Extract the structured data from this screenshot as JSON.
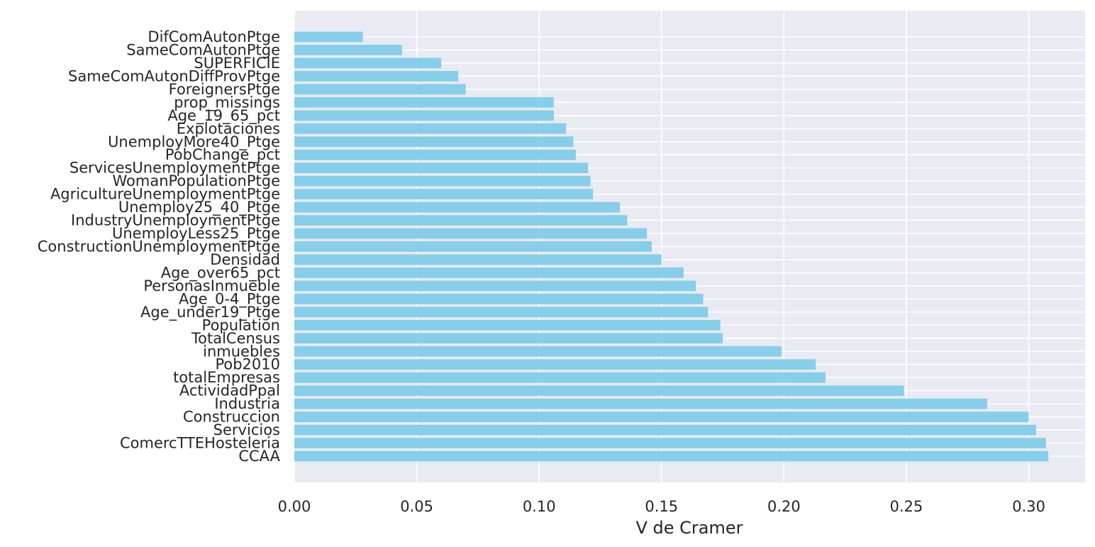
{
  "chart_data": {
    "type": "bar",
    "orientation": "horizontal",
    "title": "",
    "xlabel": "V de Cramer",
    "ylabel": "",
    "xlim": [
      0,
      0.323
    ],
    "xticks": [
      0.0,
      0.05,
      0.1,
      0.15,
      0.2,
      0.25,
      0.3
    ],
    "xtick_labels": [
      "0.00",
      "0.05",
      "0.10",
      "0.15",
      "0.20",
      "0.25",
      "0.30"
    ],
    "grid": true,
    "legend": "none",
    "colors": {
      "bar": "#87CEEB",
      "background": "#EAEAF2",
      "grid": "#FFFFFF",
      "text": "#262626"
    },
    "categories": [
      "DifComAutonPtge",
      "SameComAutonPtge",
      "SUPERFICIE",
      "SameComAutonDiffProvPtge",
      "ForeignersPtge",
      "prop_missings",
      "Age_19_65_pct",
      "Explotaciones",
      "UnemployMore40_Ptge",
      "PobChange_pct",
      "ServicesUnemploymentPtge",
      "WomanPopulationPtge",
      "AgricultureUnemploymentPtge",
      "Unemploy25_40_Ptge",
      "IndustryUnemploymentPtge",
      "UnemployLess25_Ptge",
      "ConstructionUnemploymentPtge",
      "Densidad",
      "Age_over65_pct",
      "PersonasInmueble",
      "Age_0-4_Ptge",
      "Age_under19_Ptge",
      "Population",
      "TotalCensus",
      "inmuebles",
      "Pob2010",
      "totalEmpresas",
      "ActividadPpal",
      "Industria",
      "Construccion",
      "Servicios",
      "ComercTTEHosteleria",
      "CCAA"
    ],
    "values": [
      0.028,
      0.044,
      0.06,
      0.067,
      0.07,
      0.106,
      0.106,
      0.111,
      0.114,
      0.115,
      0.12,
      0.121,
      0.122,
      0.133,
      0.136,
      0.144,
      0.146,
      0.15,
      0.159,
      0.164,
      0.167,
      0.169,
      0.174,
      0.175,
      0.199,
      0.213,
      0.217,
      0.249,
      0.283,
      0.3,
      0.303,
      0.307,
      0.308
    ]
  }
}
